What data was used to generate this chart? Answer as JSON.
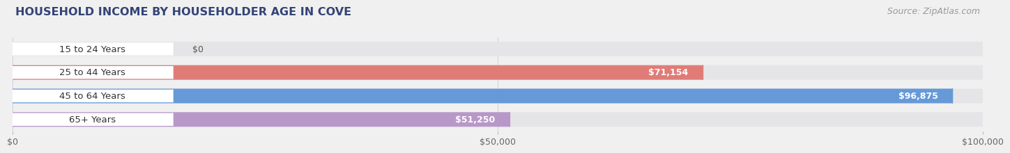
{
  "title": "HOUSEHOLD INCOME BY HOUSEHOLDER AGE IN COVE",
  "source": "Source: ZipAtlas.com",
  "categories": [
    "15 to 24 Years",
    "25 to 44 Years",
    "45 to 64 Years",
    "65+ Years"
  ],
  "values": [
    0,
    71154,
    96875,
    51250
  ],
  "bar_colors": [
    "#f0c090",
    "#e07c78",
    "#6699d8",
    "#b898c8"
  ],
  "xlim": [
    0,
    100000
  ],
  "xticks": [
    0,
    50000,
    100000
  ],
  "xtick_labels": [
    "$0",
    "$50,000",
    "$100,000"
  ],
  "value_labels": [
    "$0",
    "$71,154",
    "$96,875",
    "$51,250"
  ],
  "bg_color": "#f0f0f0",
  "bar_bg_color": "#e5e5e8",
  "bar_bg_outline": "#d8d8dc",
  "title_color": "#334477",
  "source_color": "#999999",
  "title_fontsize": 11.5,
  "source_fontsize": 9,
  "label_fontsize": 9.5,
  "value_fontsize": 9,
  "tick_fontsize": 9,
  "bar_height": 0.62,
  "bar_gap": 0.38
}
